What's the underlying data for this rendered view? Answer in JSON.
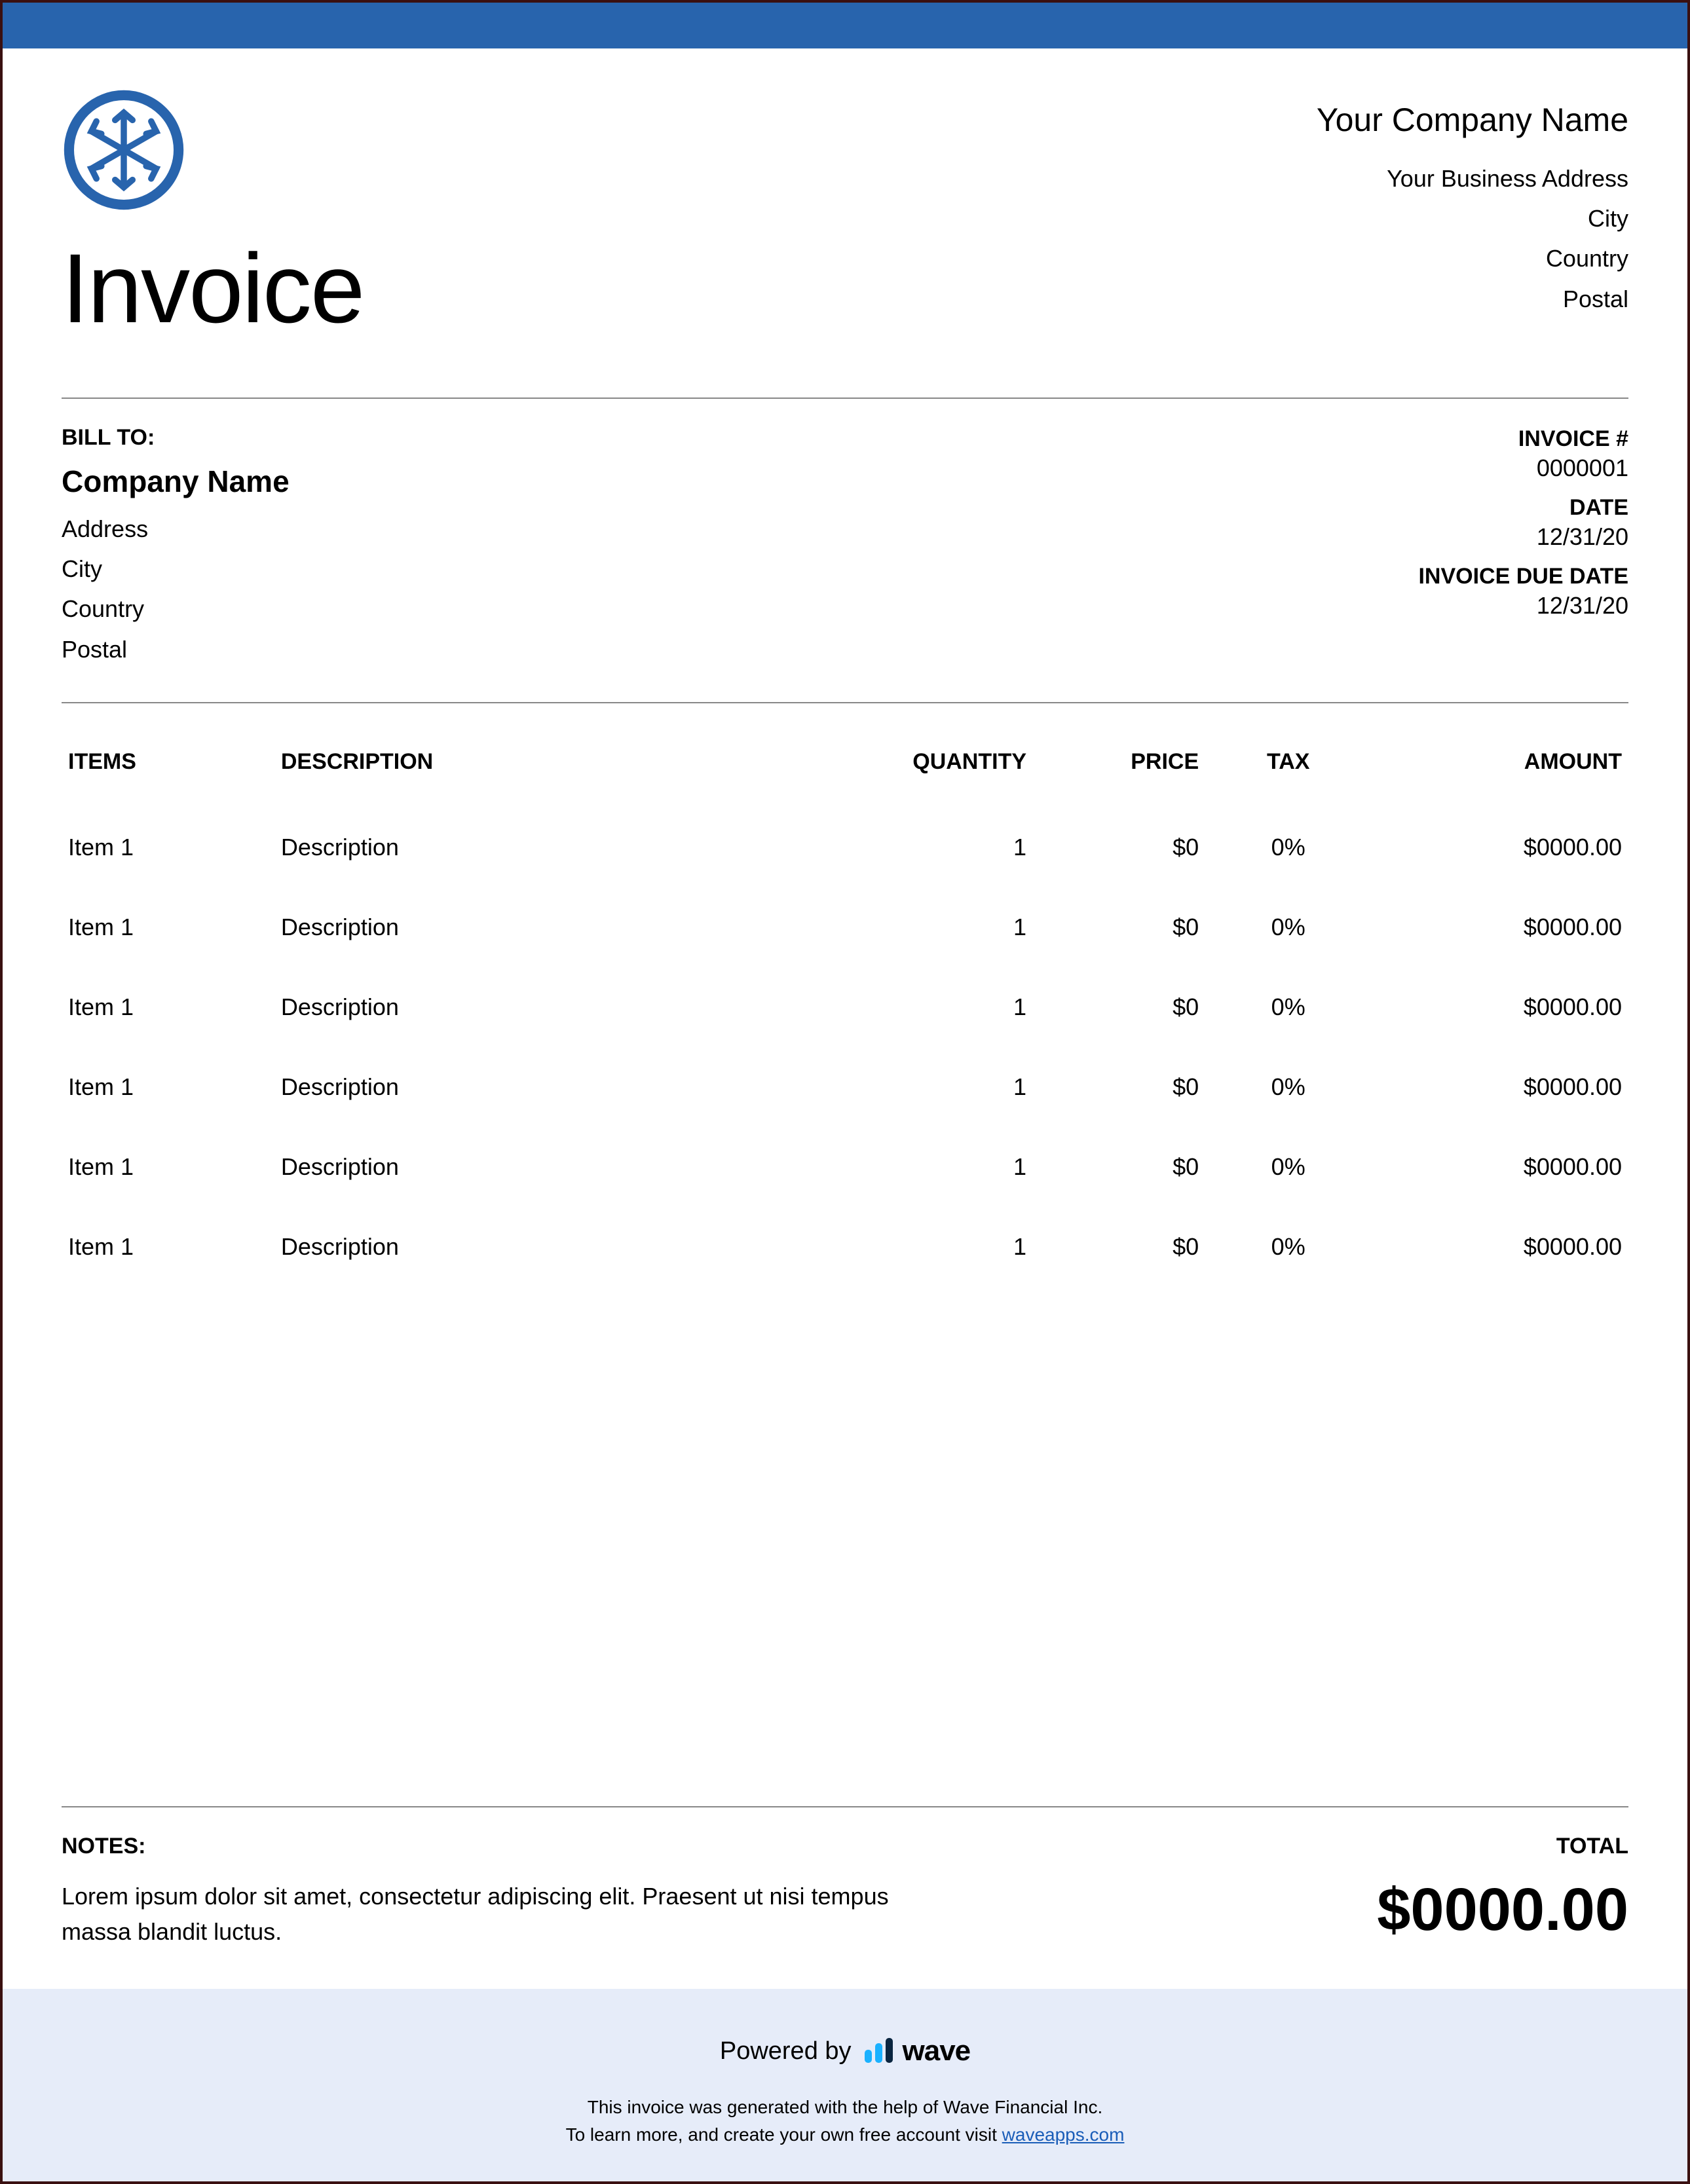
{
  "colors": {
    "top_bar": "#2864ad",
    "logo_stroke": "#2864ad",
    "border": "#3a1010",
    "divider": "#888888",
    "footer_bg": "#e6ecf9",
    "link": "#1a5db8",
    "wave_blue": "#1ab1ff",
    "wave_dark": "#0a2540",
    "text": "#000000",
    "background": "#ffffff"
  },
  "doc_title": "Invoice",
  "company": {
    "name": "Your Company Name",
    "address": "Your Business Address",
    "city": "City",
    "country": "Country",
    "postal": "Postal"
  },
  "bill_to": {
    "label": "BILL TO:",
    "company": "Company Name",
    "address": "Address",
    "city": "City",
    "country": "Country",
    "postal": "Postal"
  },
  "meta": {
    "invoice_num_label": "INVOICE #",
    "invoice_num": "0000001",
    "date_label": "DATE",
    "date": "12/31/20",
    "due_label": "INVOICE DUE DATE",
    "due": "12/31/20"
  },
  "table": {
    "headers": {
      "items": "ITEMS",
      "description": "DESCRIPTION",
      "quantity": "QUANTITY",
      "price": "PRICE",
      "tax": "TAX",
      "amount": "AMOUNT"
    },
    "rows": [
      {
        "item": "Item 1",
        "description": "Description",
        "quantity": "1",
        "price": "$0",
        "tax": "0%",
        "amount": "$0000.00"
      },
      {
        "item": "Item 1",
        "description": "Description",
        "quantity": "1",
        "price": "$0",
        "tax": "0%",
        "amount": "$0000.00"
      },
      {
        "item": "Item 1",
        "description": "Description",
        "quantity": "1",
        "price": "$0",
        "tax": "0%",
        "amount": "$0000.00"
      },
      {
        "item": "Item 1",
        "description": "Description",
        "quantity": "1",
        "price": "$0",
        "tax": "0%",
        "amount": "$0000.00"
      },
      {
        "item": "Item 1",
        "description": "Description",
        "quantity": "1",
        "price": "$0",
        "tax": "0%",
        "amount": "$0000.00"
      },
      {
        "item": "Item 1",
        "description": "Description",
        "quantity": "1",
        "price": "$0",
        "tax": "0%",
        "amount": "$0000.00"
      }
    ]
  },
  "notes": {
    "label": "NOTES:",
    "text": "Lorem ipsum dolor sit amet, consectetur adipiscing elit. Praesent ut nisi tempus massa blandit luctus."
  },
  "total": {
    "label": "TOTAL",
    "value": "$0000.00"
  },
  "footer": {
    "powered_by": "Powered by",
    "brand": "wave",
    "line1": "This invoice was generated with the help of Wave Financial Inc.",
    "line2_prefix": "To learn more, and create your own free account visit ",
    "link_text": "waveapps.com"
  }
}
